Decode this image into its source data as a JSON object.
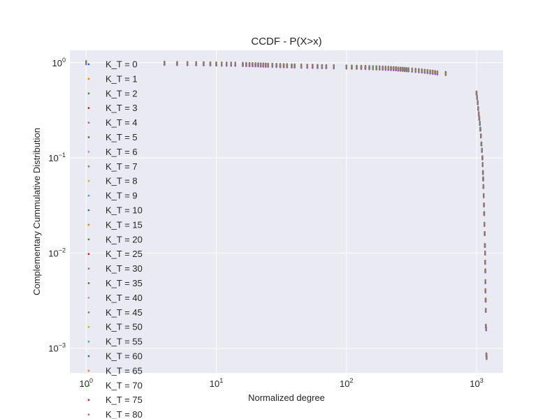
{
  "chart_data": {
    "type": "scatter",
    "title": "CCDF - P(X>x)",
    "xlabel": "Normalized degree",
    "ylabel": "Complementary Cummulative Distribution",
    "xscale": "log",
    "yscale": "log",
    "xlim": [
      0.75,
      1600
    ],
    "ylim": [
      0.00055,
      1.35
    ],
    "x_ticks": [
      {
        "value": 1,
        "base": "10",
        "exp": "0"
      },
      {
        "value": 10,
        "base": "10",
        "exp": "1"
      },
      {
        "value": 100,
        "base": "10",
        "exp": "2"
      },
      {
        "value": 1000,
        "base": "10",
        "exp": "3"
      }
    ],
    "y_ticks": [
      {
        "value": 1,
        "base": "10",
        "exp": "0"
      },
      {
        "value": 0.1,
        "base": "10",
        "exp": "−1"
      },
      {
        "value": 0.01,
        "base": "10",
        "exp": "−2"
      },
      {
        "value": 0.001,
        "base": "10",
        "exp": "−3"
      }
    ],
    "grid": true,
    "legend_position": "left, overflowing below the axes",
    "series": [
      {
        "name": "K_T = 0",
        "color": "#1f77b4"
      },
      {
        "name": "K_T = 1",
        "color": "#ff7f0e"
      },
      {
        "name": "K_T = 2",
        "color": "#2ca02c"
      },
      {
        "name": "K_T = 3",
        "color": "#d62728"
      },
      {
        "name": "K_T = 4",
        "color": "#9467bd"
      },
      {
        "name": "K_T = 5",
        "color": "#8c564b"
      },
      {
        "name": "K_T = 6",
        "color": "#e377c2"
      },
      {
        "name": "K_T = 7",
        "color": "#7f7f7f"
      },
      {
        "name": "K_T = 8",
        "color": "#bcbd22"
      },
      {
        "name": "K_T = 9",
        "color": "#17becf"
      },
      {
        "name": "K_T = 10",
        "color": "#1f77b4"
      },
      {
        "name": "K_T = 15",
        "color": "#ff7f0e"
      },
      {
        "name": "K_T = 20",
        "color": "#2ca02c"
      },
      {
        "name": "K_T = 25",
        "color": "#d62728"
      },
      {
        "name": "K_T = 30",
        "color": "#9467bd"
      },
      {
        "name": "K_T = 35",
        "color": "#8c564b"
      },
      {
        "name": "K_T = 40",
        "color": "#e377c2"
      },
      {
        "name": "K_T = 45",
        "color": "#7f7f7f"
      },
      {
        "name": "K_T = 50",
        "color": "#bcbd22"
      },
      {
        "name": "K_T = 55",
        "color": "#17becf"
      },
      {
        "name": "K_T = 60",
        "color": "#1f77b4"
      },
      {
        "name": "K_T = 65",
        "color": "#ff7f0e"
      },
      {
        "name": "K_T = 70",
        "color": "#2ca02c"
      },
      {
        "name": "K_T = 75",
        "color": "#d62728"
      },
      {
        "name": "K_T = 80",
        "color": "#9467bd"
      }
    ],
    "points": [
      [
        1,
        1.0
      ],
      [
        4,
        0.985
      ],
      [
        5,
        0.98
      ],
      [
        6,
        0.978
      ],
      [
        7,
        0.975
      ],
      [
        8,
        0.972
      ],
      [
        9,
        0.97
      ],
      [
        10,
        0.968
      ],
      [
        11,
        0.966
      ],
      [
        12,
        0.965
      ],
      [
        13,
        0.964
      ],
      [
        14,
        0.962
      ],
      [
        16,
        0.958
      ],
      [
        17,
        0.956
      ],
      [
        18,
        0.954
      ],
      [
        19,
        0.952
      ],
      [
        20,
        0.95
      ],
      [
        21,
        0.948
      ],
      [
        22,
        0.946
      ],
      [
        23,
        0.944
      ],
      [
        24,
        0.942
      ],
      [
        25,
        0.94
      ],
      [
        27,
        0.938
      ],
      [
        29,
        0.935
      ],
      [
        31,
        0.932
      ],
      [
        33,
        0.93
      ],
      [
        35,
        0.928
      ],
      [
        38,
        0.925
      ],
      [
        40,
        0.923
      ],
      [
        45,
        0.92
      ],
      [
        50,
        0.917
      ],
      [
        55,
        0.915
      ],
      [
        60,
        0.912
      ],
      [
        65,
        0.91
      ],
      [
        70,
        0.908
      ],
      [
        80,
        0.905
      ],
      [
        100,
        0.9
      ],
      [
        110,
        0.897
      ],
      [
        120,
        0.895
      ],
      [
        130,
        0.892
      ],
      [
        140,
        0.89
      ],
      [
        150,
        0.887
      ],
      [
        160,
        0.885
      ],
      [
        170,
        0.882
      ],
      [
        180,
        0.88
      ],
      [
        190,
        0.877
      ],
      [
        200,
        0.874
      ],
      [
        210,
        0.871
      ],
      [
        220,
        0.868
      ],
      [
        230,
        0.865
      ],
      [
        240,
        0.862
      ],
      [
        250,
        0.858
      ],
      [
        260,
        0.855
      ],
      [
        270,
        0.852
      ],
      [
        280,
        0.848
      ],
      [
        290,
        0.845
      ],
      [
        300,
        0.842
      ],
      [
        320,
        0.836
      ],
      [
        340,
        0.83
      ],
      [
        360,
        0.824
      ],
      [
        380,
        0.818
      ],
      [
        400,
        0.812
      ],
      [
        420,
        0.806
      ],
      [
        440,
        0.8
      ],
      [
        460,
        0.794
      ],
      [
        480,
        0.788
      ],
      [
        500,
        0.78
      ],
      [
        580,
        0.77
      ],
      [
        1000,
        0.48
      ],
      [
        1010,
        0.43
      ],
      [
        1020,
        0.38
      ],
      [
        1030,
        0.33
      ],
      [
        1040,
        0.29
      ],
      [
        1050,
        0.26
      ],
      [
        1060,
        0.23
      ],
      [
        1070,
        0.2
      ],
      [
        1080,
        0.17
      ],
      [
        1090,
        0.14
      ],
      [
        1100,
        0.12
      ],
      [
        1110,
        0.1
      ],
      [
        1115,
        0.085
      ],
      [
        1120,
        0.07
      ],
      [
        1125,
        0.06
      ],
      [
        1130,
        0.05
      ],
      [
        1135,
        0.04
      ],
      [
        1140,
        0.032
      ],
      [
        1145,
        0.026
      ],
      [
        1150,
        0.02
      ],
      [
        1155,
        0.016
      ],
      [
        1160,
        0.012
      ],
      [
        1163,
        0.01
      ],
      [
        1165,
        0.008
      ],
      [
        1168,
        0.0065
      ],
      [
        1170,
        0.005
      ],
      [
        1172,
        0.004
      ],
      [
        1175,
        0.0032
      ],
      [
        1177,
        0.0025
      ],
      [
        1180,
        0.0017
      ],
      [
        1185,
        0.0016
      ],
      [
        1190,
        0.00085
      ],
      [
        1195,
        0.0008
      ]
    ]
  }
}
